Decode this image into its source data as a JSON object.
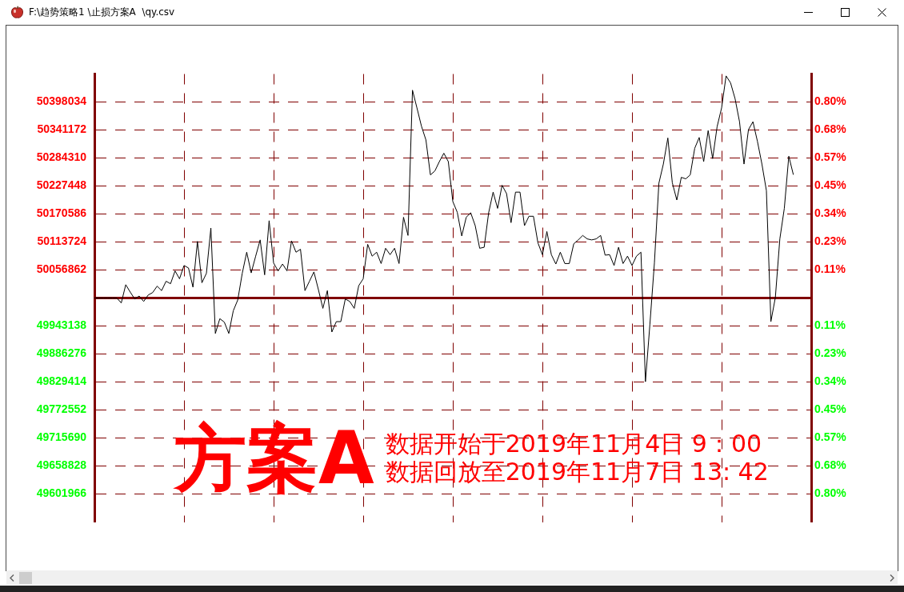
{
  "chart_data": {
    "type": "line",
    "title": "F:\\趋势策略1 \\止损方案A  \\qy.csv",
    "annotations": [
      "方案A",
      "数据开始于2019年11月4日 9：00",
      "数据回放至2019年11月7日 13: 42"
    ],
    "categories": [
      null,
      null,
      null,
      null,
      null,
      null,
      null,
      null,
      null,
      null,
      null,
      null,
      null,
      null,
      null,
      null,
      null,
      null,
      null,
      null,
      null,
      null,
      null,
      null,
      null,
      null,
      null,
      null,
      null,
      null,
      null,
      null,
      null,
      null,
      null,
      null,
      null,
      null,
      null,
      null,
      null,
      null,
      null,
      null,
      null,
      null,
      null,
      null,
      null,
      null,
      null,
      null,
      null,
      null,
      null,
      null,
      null,
      null,
      null,
      null,
      null,
      null,
      null,
      null,
      null,
      null,
      null,
      null,
      null,
      null,
      null,
      null,
      null,
      null,
      null,
      null,
      null,
      null,
      null,
      null,
      null,
      null,
      null,
      null,
      null,
      null,
      null,
      null,
      null,
      null,
      null,
      null,
      null,
      null,
      null,
      null,
      null,
      null,
      null,
      null,
      null,
      null,
      null,
      null,
      null,
      null,
      null,
      null,
      null,
      null,
      null,
      null,
      null,
      null,
      null,
      null,
      null,
      null,
      null,
      null,
      null,
      null,
      null,
      null,
      null,
      null,
      null,
      null,
      null,
      null,
      null,
      null,
      null,
      null,
      null,
      null,
      null,
      null,
      null,
      null,
      null,
      null,
      null,
      null,
      null,
      null,
      null,
      null,
      null,
      null,
      null,
      null,
      null,
      null,
      null,
      null,
      null,
      null,
      null,
      null,
      null
    ],
    "values": [
      50000000,
      50000000,
      50000000,
      50000000,
      50000000,
      50000000,
      49990000,
      50027000,
      50012000,
      49998000,
      50004000,
      49993000,
      50006000,
      50011000,
      50024000,
      50015000,
      50034000,
      50029000,
      50055000,
      50039000,
      50066000,
      50061000,
      50022000,
      50115000,
      50031000,
      50050000,
      50142000,
      49928000,
      49958000,
      49951000,
      49928000,
      49974000,
      49996000,
      50050000,
      50093000,
      50051000,
      50085000,
      50118000,
      50047000,
      50157000,
      50071000,
      50055000,
      50069000,
      50055000,
      50116000,
      50093000,
      50099000,
      50015000,
      50034000,
      50053000,
      50017000,
      49979000,
      50015000,
      49931000,
      49952000,
      49952000,
      49998000,
      49993000,
      49979000,
      50025000,
      50039000,
      50109000,
      50085000,
      50093000,
      50070000,
      50101000,
      50088000,
      50101000,
      50070000,
      50164000,
      50127000,
      50422000,
      50386000,
      50349000,
      50321000,
      50250000,
      50258000,
      50277000,
      50294000,
      50277000,
      50196000,
      50174000,
      50126000,
      50164000,
      50173000,
      50147000,
      50101000,
      50103000,
      50173000,
      50215000,
      50182000,
      50229000,
      50212000,
      50153000,
      50215000,
      50215000,
      50147000,
      50166000,
      50166000,
      50112000,
      50088000,
      50135000,
      50088000,
      50069000,
      50093000,
      50070000,
      50070000,
      50110000,
      50118000,
      50127000,
      50120000,
      50118000,
      50120000,
      50127000,
      50087000,
      50088000,
      50066000,
      50103000,
      50070000,
      50085000,
      50066000,
      50085000,
      50093000,
      49830000,
      49947000,
      50071000,
      50233000,
      50272000,
      50325000,
      50234000,
      50199000,
      50245000,
      50242000,
      50250000,
      50304000,
      50326000,
      50277000,
      50340000,
      50283000,
      50348000,
      50386000,
      50451000,
      50437000,
      50405000,
      50358000,
      50272000,
      50342000,
      50358000,
      50318000,
      50272000,
      50218000,
      49952000,
      50001000,
      50120000,
      50182000,
      50288000,
      50251000,
      null,
      null,
      null,
      null
    ],
    "color": "#000000",
    "marker": "none",
    "ylim": [
      49545104,
      50454896
    ],
    "yticks": [
      49601966,
      49658828,
      49715690,
      49772552,
      49829414,
      49886276,
      49943138,
      50056862,
      50113724,
      50170586,
      50227448,
      50284310,
      50341172,
      50398034
    ],
    "y2lim": [
      -0.9098,
      0.9098
    ],
    "y2ticks": [
      {
        "value": 0.1137,
        "label": "0.11%"
      },
      {
        "value": 0.2274,
        "label": "0.23%"
      },
      {
        "value": 0.3412,
        "label": "0.34%"
      },
      {
        "value": 0.4549,
        "label": "0.45%"
      },
      {
        "value": 0.5686,
        "label": "0.57%"
      },
      {
        "value": 0.6823,
        "label": "0.68%"
      },
      {
        "value": 0.7961,
        "label": "0.80%"
      }
    ],
    "y3lim": [
      0.9098,
      -0.9098
    ],
    "y3ticks": [
      {
        "value": 0.1137,
        "label": "0.11%"
      },
      {
        "value": 0.2274,
        "label": "0.23%"
      },
      {
        "value": 0.3412,
        "label": "0.34%"
      },
      {
        "value": 0.4549,
        "label": "0.45%"
      },
      {
        "value": 0.5686,
        "label": "0.57%"
      },
      {
        "value": 0.6823,
        "label": "0.68%"
      },
      {
        "value": 0.7961,
        "label": "0.80%"
      }
    ],
    "ref_lines": [
      {
        "axis": "y",
        "value": 50000000,
        "color": "#800000"
      }
    ],
    "grid": true
  }
}
